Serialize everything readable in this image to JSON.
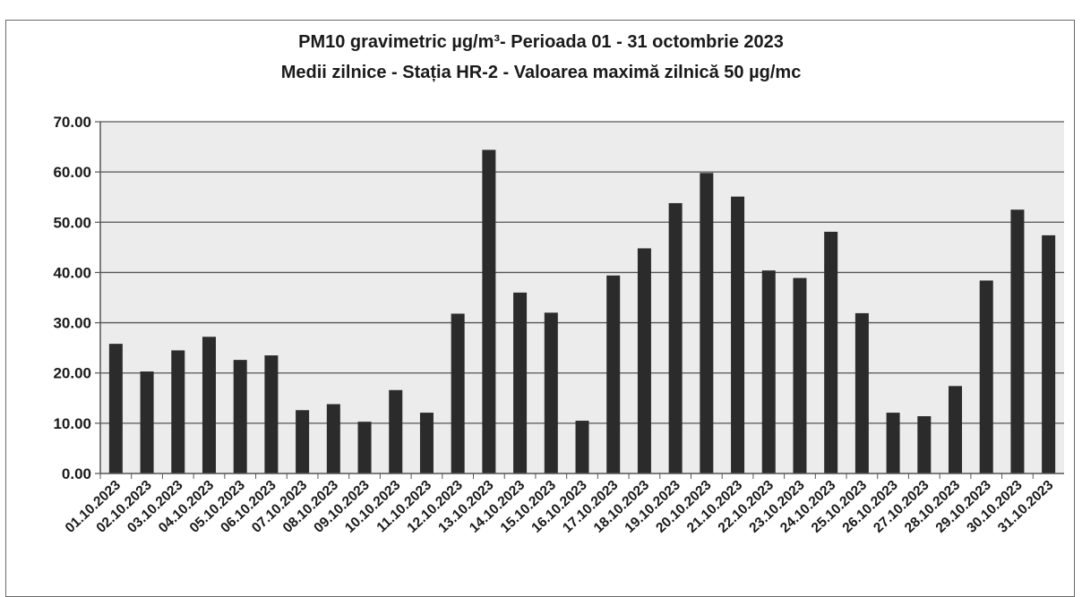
{
  "chart_data": {
    "type": "bar",
    "title": "PM10 gravimetric µg/m³- Perioada 01 - 31 octombrie 2023",
    "subtitle": "Medii zilnice - Stația HR-2 -  Valoarea maximă zilnică 50 µg/mc",
    "xlabel": "",
    "ylabel": "",
    "ylim": [
      0,
      70
    ],
    "yticks": [
      "0.00",
      "10.00",
      "20.00",
      "30.00",
      "40.00",
      "50.00",
      "60.00",
      "70.00"
    ],
    "grid": true,
    "bar_color": "#2b2b2b",
    "plot_background": "#ececec",
    "categories": [
      "01.10.2023",
      "02.10.2023",
      "03.10.2023",
      "04.10.2023",
      "05.10.2023",
      "06.10.2023",
      "07.10.2023",
      "08.10.2023",
      "09.10.2023",
      "10.10.2023",
      "11.10.2023",
      "12.10.2023",
      "13.10.2023",
      "14.10.2023",
      "15.10.2023",
      "16.10.2023",
      "17.10.2023",
      "18.10.2023",
      "19.10.2023",
      "20.10.2023",
      "21.10.2023",
      "22.10.2023",
      "23.10.2023",
      "24.10.2023",
      "25.10.2023",
      "26.10.2023",
      "27.10.2023",
      "28.10.2023",
      "29.10.2023",
      "30.10.2023",
      "31.10.2023"
    ],
    "values": [
      25.8,
      20.3,
      24.5,
      27.2,
      22.6,
      23.5,
      12.6,
      13.8,
      10.3,
      16.6,
      12.1,
      31.8,
      64.4,
      36.0,
      32.0,
      10.5,
      39.4,
      44.8,
      53.8,
      59.8,
      55.1,
      40.4,
      38.9,
      48.1,
      31.9,
      12.1,
      11.4,
      17.4,
      38.4,
      52.5,
      47.4
    ]
  }
}
